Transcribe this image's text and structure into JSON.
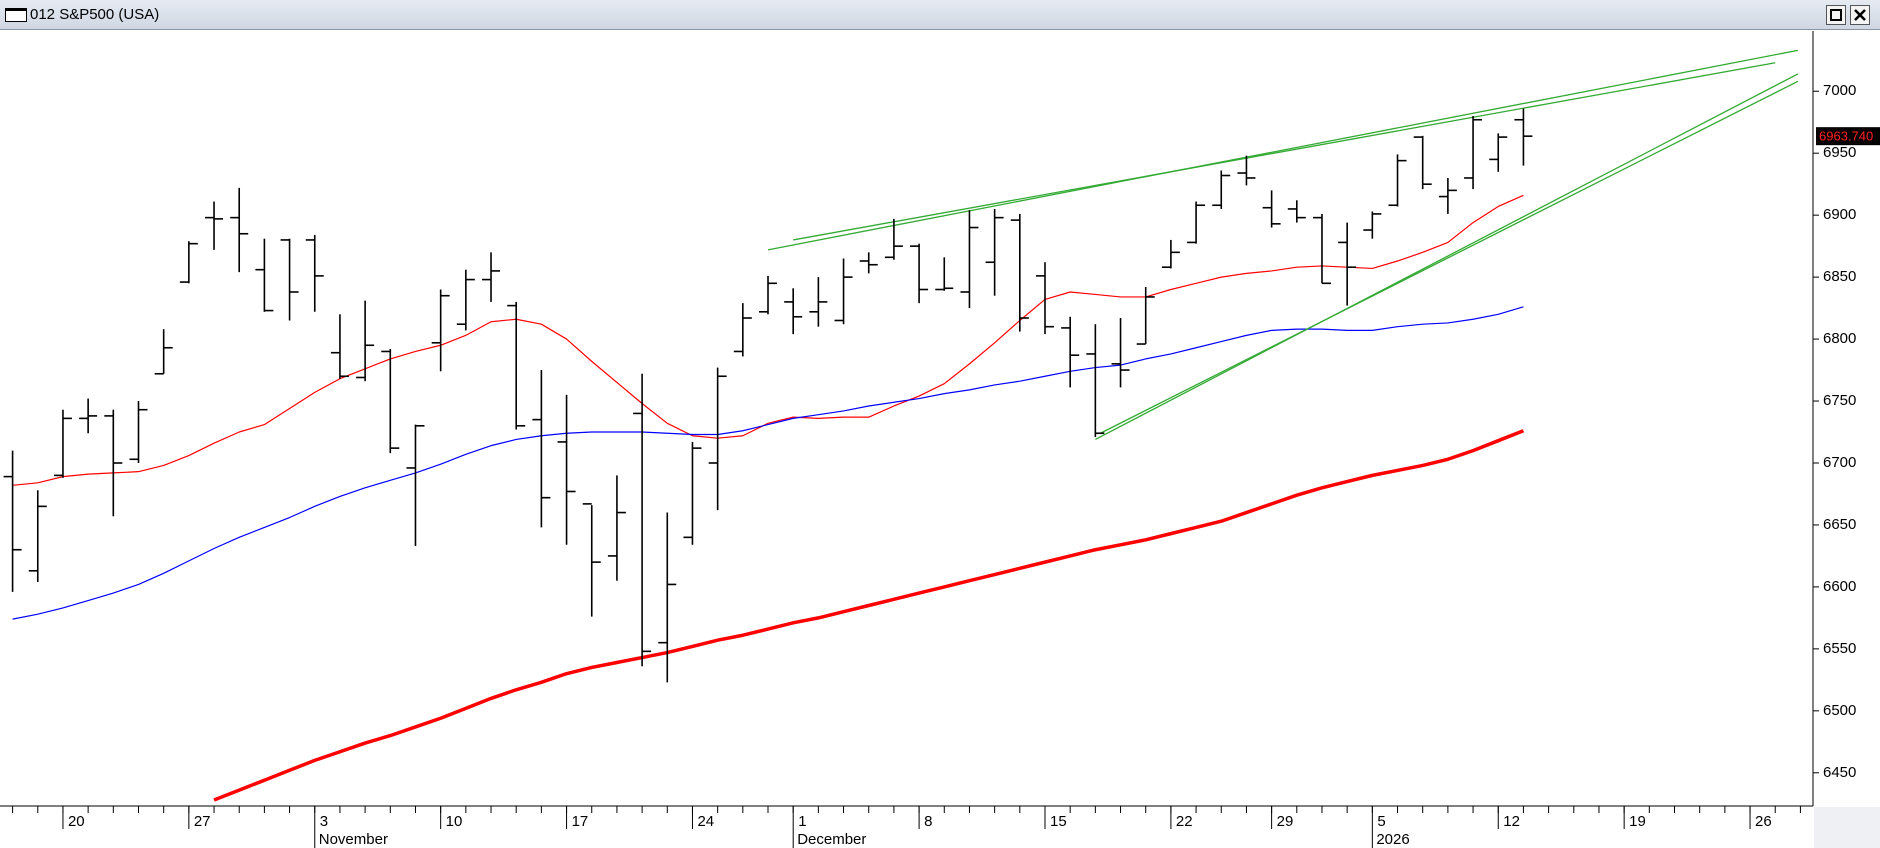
{
  "window": {
    "title": "012 S&P500 (USA)"
  },
  "chart_data": {
    "type": "ohlc",
    "categories": [
      null,
      null,
      "20",
      null,
      null,
      null,
      null,
      "27",
      null,
      null,
      null,
      null,
      "3",
      null,
      null,
      null,
      null,
      "10",
      null,
      null,
      null,
      null,
      "17",
      null,
      null,
      null,
      null,
      "24",
      null,
      null,
      null,
      "1",
      null,
      null,
      null,
      null,
      "8",
      null,
      null,
      null,
      null,
      "15",
      null,
      null,
      null,
      null,
      "22",
      null,
      null,
      null,
      "29",
      null,
      null,
      null,
      "5",
      null,
      null,
      null,
      null,
      "12",
      null,
      null,
      null,
      null,
      "19",
      null,
      null,
      null,
      null,
      "26",
      null,
      null
    ],
    "category_groups": [
      null,
      null,
      null,
      null,
      null,
      null,
      null,
      null,
      null,
      null,
      null,
      null,
      "November",
      null,
      null,
      null,
      null,
      null,
      null,
      null,
      null,
      null,
      null,
      null,
      null,
      null,
      null,
      null,
      null,
      null,
      null,
      "December",
      null,
      null,
      null,
      null,
      null,
      null,
      null,
      null,
      null,
      null,
      null,
      null,
      null,
      null,
      null,
      null,
      null,
      null,
      null,
      null,
      null,
      null,
      "2026",
      null,
      null,
      null,
      null,
      null,
      null,
      null,
      null,
      null,
      null,
      null,
      null,
      null,
      null,
      null,
      null,
      null
    ],
    "open": [
      6689,
      6613,
      6690,
      6736,
      6738,
      6703,
      6772,
      6846,
      6898,
      6898,
      6856,
      6880,
      6880,
      6789,
      6769,
      6790,
      6696,
      6797,
      6812,
      6848,
      6827,
      6735,
      6717,
      6667,
      6625,
      6740,
      6555,
      6640,
      6700,
      6790,
      6822,
      6830,
      6822,
      6815,
      6863,
      6866,
      6875,
      6840,
      6838,
      6862,
      6896,
      6851,
      6809,
      6788,
      6780,
      6796,
      6858,
      6878,
      6908,
      6934,
      6906,
      6905,
      6898,
      6878,
      6888,
      6908,
      6963,
      6915,
      6930,
      6945,
      6977,
      null,
      null,
      null,
      null,
      null,
      null,
      null,
      null,
      null,
      null,
      null
    ],
    "high": [
      6710,
      6678,
      6743,
      6752,
      6743,
      6750,
      6808,
      6879,
      6911,
      6922,
      6881,
      6881,
      6884,
      6820,
      6831,
      6792,
      6731,
      6840,
      6856,
      6870,
      6830,
      6775,
      6755,
      6666,
      6690,
      6772,
      6660,
      6717,
      6777,
      6829,
      6851,
      6841,
      6850,
      6865,
      6870,
      6897,
      6877,
      6866,
      6904,
      6905,
      6901,
      6862,
      6818,
      6812,
      6817,
      6842,
      6880,
      6911,
      6936,
      6948,
      6920,
      6912,
      6901,
      6894,
      6903,
      6949,
      6964,
      6930,
      6980,
      6966,
      6986,
      null,
      null,
      null,
      null,
      null,
      null,
      null,
      null,
      null,
      null,
      null
    ],
    "low": [
      6596,
      6604,
      6688,
      6724,
      6657,
      6700,
      6772,
      6845,
      6872,
      6854,
      6822,
      6815,
      6822,
      6768,
      6766,
      6708,
      6633,
      6774,
      6807,
      6830,
      6727,
      6648,
      6634,
      6576,
      6605,
      6536,
      6523,
      6634,
      6662,
      6786,
      6820,
      6804,
      6810,
      6812,
      6853,
      6864,
      6829,
      6839,
      6825,
      6835,
      6806,
      6804,
      6761,
      6721,
      6761,
      6796,
      6857,
      6877,
      6905,
      6924,
      6890,
      6894,
      6845,
      6827,
      6881,
      6907,
      6921,
      6901,
      6921,
      6935,
      6940,
      null,
      null,
      null,
      null,
      null,
      null,
      null,
      null,
      null,
      null,
      null
    ],
    "close": [
      6630,
      6665,
      6736,
      6738,
      6700,
      6743,
      6793,
      6877,
      6897,
      6885,
      6823,
      6838,
      6851,
      6770,
      6795,
      6712,
      6730,
      6835,
      6848,
      6855,
      6730,
      6672,
      6677,
      6620,
      6660,
      6548,
      6602,
      6712,
      6770,
      6817,
      6845,
      6818,
      6830,
      6850,
      6860,
      6875,
      6840,
      6841,
      6890,
      6898,
      6817,
      6810,
      6787,
      6724,
      6775,
      6834,
      6870,
      6908,
      6932,
      6930,
      6893,
      6898,
      6845,
      6858,
      6901,
      6944,
      6925,
      6920,
      6977,
      6963,
      6963.74,
      null,
      null,
      null,
      null,
      null,
      null,
      null,
      null,
      null,
      null,
      null
    ],
    "color": "#000000",
    "series": [
      {
        "color": "#ff0000",
        "width": 1.2,
        "values": [
          6682,
          6684,
          6689,
          6691,
          6692,
          6693,
          6698,
          6706,
          6716,
          6725,
          6731,
          6744,
          6757,
          6768,
          6776,
          6784,
          6790,
          6795,
          6803,
          6814,
          6816,
          6812,
          6800,
          6782,
          6765,
          6748,
          6732,
          6722,
          6720,
          6722,
          6732,
          6737,
          6736,
          6737,
          6737,
          6746,
          6754,
          6764,
          6780,
          6797,
          6815,
          6832,
          6838,
          6836,
          6834,
          6834,
          6840,
          6845,
          6850,
          6853,
          6855,
          6858,
          6859,
          6858,
          6857,
          6863,
          6870,
          6878,
          6894,
          6907,
          6916,
          null,
          null,
          null,
          null,
          null,
          null,
          null,
          null,
          null,
          null,
          null
        ]
      },
      {
        "color": "#0000ff",
        "width": 1.2,
        "values": [
          6574,
          6578,
          6583,
          6589,
          6595,
          6602,
          6611,
          6621,
          6631,
          6640,
          6648,
          6656,
          6665,
          6673,
          6680,
          6686,
          6692,
          6699,
          6707,
          6714,
          6719,
          6722,
          6724,
          6725,
          6725,
          6725,
          6724,
          6723,
          6723,
          6726,
          6731,
          6736,
          6739,
          6742,
          6746,
          6749,
          6752,
          6756,
          6759,
          6763,
          6766,
          6770,
          6774,
          6777,
          6779,
          6784,
          6788,
          6793,
          6798,
          6803,
          6807,
          6808,
          6808,
          6807,
          6807,
          6810,
          6812,
          6813,
          6816,
          6820,
          6826,
          null,
          null,
          null,
          null,
          null,
          null,
          null,
          null,
          null,
          null,
          null
        ]
      },
      {
        "color": "#ff0000",
        "width": 3.5,
        "values": [
          null,
          null,
          null,
          null,
          null,
          null,
          null,
          null,
          6428,
          6436,
          6444,
          6452,
          6460,
          6467,
          6474,
          6480,
          6487,
          6494,
          6502,
          6510,
          6517,
          6523,
          6530,
          6535,
          6539,
          6543,
          6547,
          6552,
          6557,
          6561,
          6566,
          6571,
          6575,
          6580,
          6585,
          6590,
          6595,
          6600,
          6605,
          6610,
          6615,
          6620,
          6625,
          6630,
          6634,
          6638,
          6643,
          6648,
          6653,
          6660,
          6667,
          6674,
          6680,
          6685,
          6690,
          6694,
          6698,
          6703,
          6710,
          6718,
          6726,
          null,
          null,
          null,
          null,
          null,
          null,
          null,
          null,
          null,
          null,
          null
        ]
      }
    ],
    "trendlines": [
      {
        "color": "#33aa33",
        "x": [
          30,
          70.9
        ],
        "y": [
          6872,
          7033
        ]
      },
      {
        "color": "#33aa33",
        "x": [
          31,
          70
        ],
        "y": [
          6880,
          7023
        ]
      },
      {
        "color": "#33aa33",
        "x": [
          43,
          70.9
        ],
        "y": [
          6719,
          7014
        ]
      },
      {
        "color": "#33aa33",
        "x": [
          43.2,
          70.9
        ],
        "y": [
          6724,
          7008
        ]
      }
    ],
    "last_price": {
      "value": 6963.74,
      "label": "6963.740"
    },
    "ylim": [
      6424,
      7047
    ],
    "yticks": [
      6450,
      6500,
      6550,
      6600,
      6650,
      6700,
      6750,
      6800,
      6850,
      6900,
      6950,
      7000
    ]
  }
}
